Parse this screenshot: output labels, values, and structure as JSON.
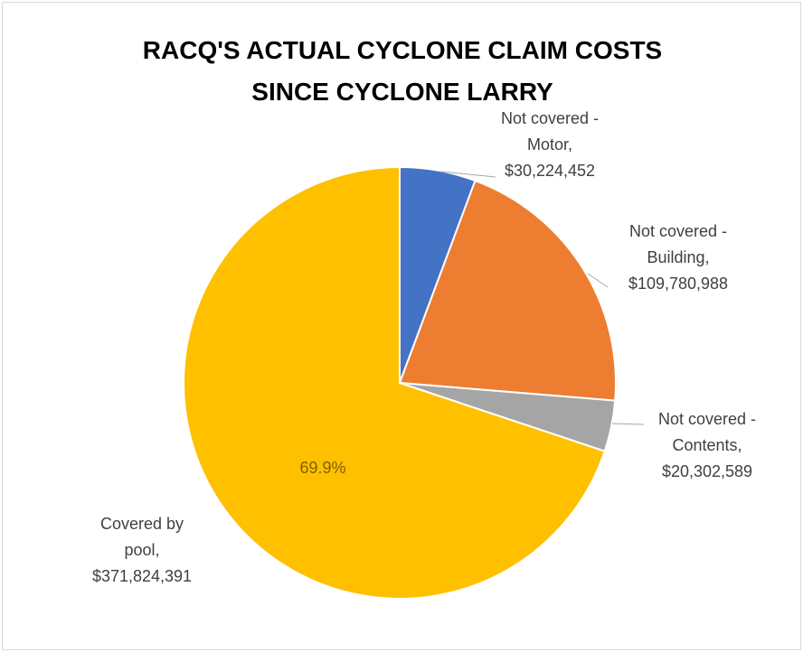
{
  "chart_data": {
    "type": "pie",
    "title_lines": [
      "RACQ'S ACTUAL CYCLONE CLAIM COSTS",
      "SINCE CYCLONE LARRY"
    ],
    "legend": "none",
    "slices": [
      {
        "name": "Not covered - Motor",
        "value": 30224452,
        "label_lines": [
          "Not covered -",
          "Motor,",
          "$30,224,452"
        ],
        "color": "#4472C4"
      },
      {
        "name": "Not covered - Building",
        "value": 109780988,
        "label_lines": [
          "Not covered -",
          "Building,",
          "$109,780,988"
        ],
        "color": "#ED7D31"
      },
      {
        "name": "Not covered - Contents",
        "value": 20302589,
        "label_lines": [
          "Not covered -",
          "Contents,",
          "$20,302,589"
        ],
        "color": "#A5A5A5"
      },
      {
        "name": "Covered by pool",
        "value": 371824391,
        "label_lines": [
          "Covered by",
          "pool,",
          "$371,824,391"
        ],
        "color": "#FFC000",
        "percent_label": "69.9%"
      }
    ]
  }
}
